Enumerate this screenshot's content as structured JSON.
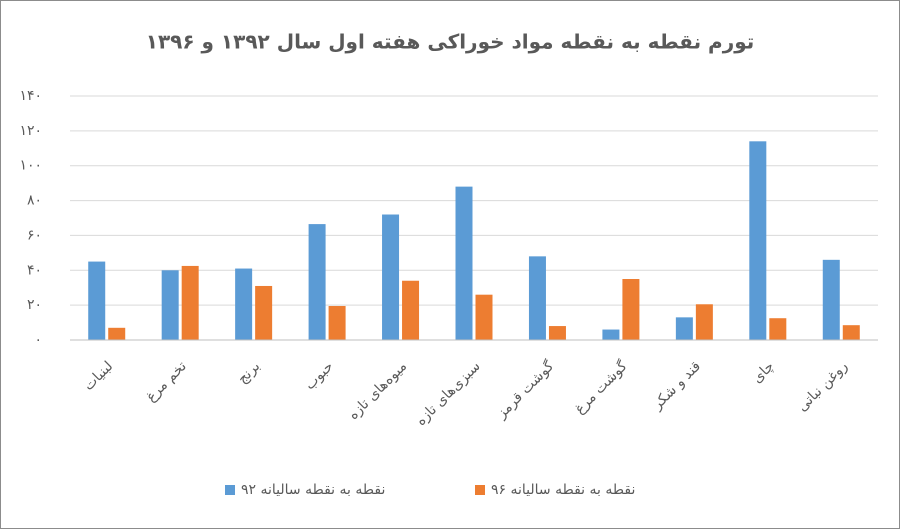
{
  "chart_data": {
    "type": "bar",
    "title": "تورم نقطه به نقطه مواد خوراکی هفته اول سال ۱۳۹۲ و ۱۳۹۶",
    "categories": [
      "لبنیات",
      "تخم مرغ",
      "برنج",
      "حبوب",
      "میوه‌های تازه",
      "سبزی‌های تازه",
      "گوشت قرمز",
      "گوشت مرغ",
      "قند و شکر",
      "چای",
      "روغن نباتی"
    ],
    "series": [
      {
        "name": "نقطه به نقطه سالیانه ۹۲",
        "color": "#5b9bd5",
        "values": [
          45,
          40,
          41,
          66.5,
          72,
          88,
          48,
          6,
          13,
          114,
          46
        ]
      },
      {
        "name": "نقطه به نقطه سالیانه ۹۶",
        "color": "#ed7d31",
        "values": [
          7,
          42.5,
          31,
          19.5,
          34,
          26,
          8,
          35,
          20.5,
          12.5,
          8.5
        ]
      }
    ],
    "ylim": [
      0,
      140
    ],
    "yticks": [
      {
        "value": 0,
        "label": "۰"
      },
      {
        "value": 20,
        "label": "۲۰"
      },
      {
        "value": 40,
        "label": "۴۰"
      },
      {
        "value": 60,
        "label": "۶۰"
      },
      {
        "value": 80,
        "label": "۸۰"
      },
      {
        "value": 100,
        "label": "۱۰۰"
      },
      {
        "value": 120,
        "label": "۱۲۰"
      },
      {
        "value": 140,
        "label": "۱۴۰"
      }
    ],
    "grid": true,
    "legend": "bottom"
  }
}
